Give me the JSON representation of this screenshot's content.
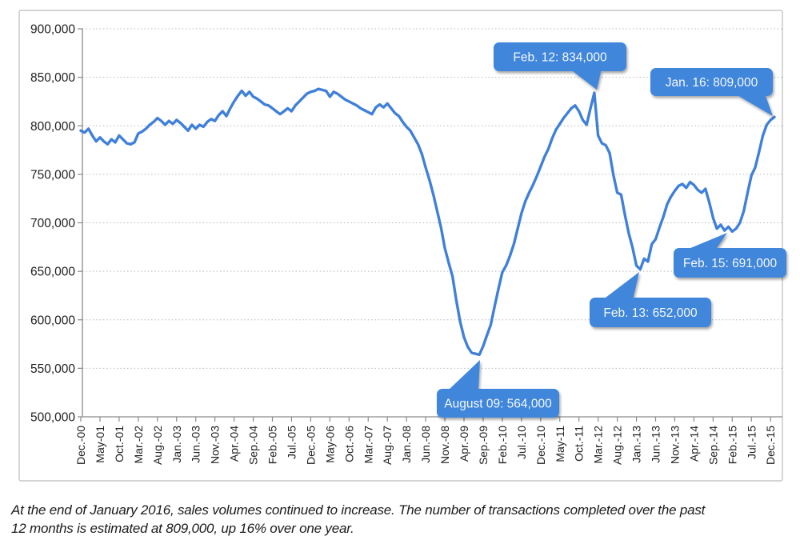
{
  "chart_data": {
    "type": "line",
    "title": "",
    "frequency": "monthly",
    "x_start": "Dec-00",
    "x_end": "Jan-16",
    "x_tick_labels": [
      "Dec.-00",
      "May-01",
      "Oct.-01",
      "Mar.-02",
      "Aug.-02",
      "Jan.-03",
      "Jun.-03",
      "Nov.-03",
      "Apr.-04",
      "Sep.-04",
      "Feb.-05",
      "Jul.-05",
      "Dec.-05",
      "May-06",
      "Oct.-06",
      "Mar.-07",
      "Aug.-07",
      "Jan.-08",
      "Jun.-08",
      "Nov.-08",
      "Apr.-09",
      "Sep.-09",
      "Feb.-10",
      "Jul.-10",
      "Dec.-10",
      "May-11",
      "Oct.-11",
      "Mar.-12",
      "Aug.-12",
      "Jan.-13",
      "Jun.-13",
      "Nov.-13",
      "Apr.-14",
      "Sep.-14",
      "Feb.-15",
      "Jul.-15",
      "Dec.-15"
    ],
    "x_ticks_every_n_months": 5,
    "y_ticks": [
      500000,
      550000,
      600000,
      650000,
      700000,
      750000,
      800000,
      850000,
      900000
    ],
    "ylim": [
      500000,
      900000
    ],
    "grid": "horizontal-dotted",
    "legend": "none",
    "series": [
      {
        "name": "Number of transactions over 12 months",
        "values": [
          795000,
          793000,
          797000,
          790000,
          784000,
          788000,
          784000,
          781000,
          786000,
          783000,
          790000,
          786000,
          782000,
          781000,
          783000,
          792000,
          794000,
          797000,
          801000,
          804000,
          808000,
          805000,
          801000,
          805000,
          802000,
          806000,
          803000,
          799000,
          795000,
          801000,
          797000,
          801000,
          799000,
          804000,
          807000,
          805000,
          811000,
          815000,
          810000,
          818000,
          825000,
          831000,
          836000,
          831000,
          835000,
          830000,
          828000,
          825000,
          822000,
          821000,
          818000,
          815000,
          812000,
          815000,
          818000,
          815000,
          821000,
          825000,
          829000,
          833000,
          835000,
          836000,
          838000,
          837000,
          836000,
          830000,
          835000,
          833000,
          830000,
          827000,
          825000,
          823000,
          821000,
          818000,
          816000,
          814000,
          812000,
          819000,
          822000,
          819000,
          823000,
          818000,
          813000,
          810000,
          804000,
          799000,
          795000,
          788000,
          781000,
          771000,
          757000,
          744000,
          729000,
          712000,
          695000,
          674000,
          659000,
          645000,
          620000,
          598000,
          582000,
          572000,
          566000,
          565000,
          564000,
          573000,
          584000,
          595000,
          614000,
          632000,
          649000,
          656000,
          666000,
          678000,
          694000,
          710000,
          722000,
          731000,
          739000,
          748000,
          758000,
          768000,
          776000,
          787000,
          796000,
          802000,
          808000,
          813000,
          818000,
          821000,
          815000,
          806000,
          801000,
          818000,
          834000,
          790000,
          782000,
          780000,
          772000,
          749000,
          731000,
          729000,
          708000,
          689000,
          674000,
          656000,
          652000,
          663000,
          660000,
          678000,
          683000,
          695000,
          706000,
          719000,
          727000,
          733000,
          738000,
          740000,
          736000,
          742000,
          739000,
          734000,
          731000,
          735000,
          721000,
          705000,
          694000,
          698000,
          692000,
          696000,
          691000,
          694000,
          700000,
          712000,
          731000,
          749000,
          757000,
          773000,
          790000,
          801000,
          806000,
          809000
        ]
      }
    ]
  },
  "annotations": [
    {
      "id": "feb12",
      "label": "Feb. 12: 834,000",
      "month_index": 134,
      "value": 834000
    },
    {
      "id": "jan16",
      "label": "Jan. 16: 809,000",
      "month_index": 181,
      "value": 809000
    },
    {
      "id": "feb15",
      "label": "Feb. 15: 691,000",
      "month_index": 170,
      "value": 691000
    },
    {
      "id": "feb13",
      "label": "Feb. 13: 652,000",
      "month_index": 146,
      "value": 652000
    },
    {
      "id": "aug09",
      "label": "August 09: 564,000",
      "month_index": 104,
      "value": 564000
    }
  ],
  "colors": {
    "line": "#4080d9",
    "callout": "#4186db",
    "callout_text": "#f4f8ff",
    "grid": "#b8b8b8",
    "axis": "#8a8a8a",
    "tick_label": "#212121",
    "frame": "#c5c5c5",
    "background": "#ffffff"
  },
  "footer": {
    "line1": "At the end of January 2016, sales volumes continued to increase. The number of transactions completed over the past",
    "line2": "12 months is estimated at 809,000, up 16% over one year."
  }
}
